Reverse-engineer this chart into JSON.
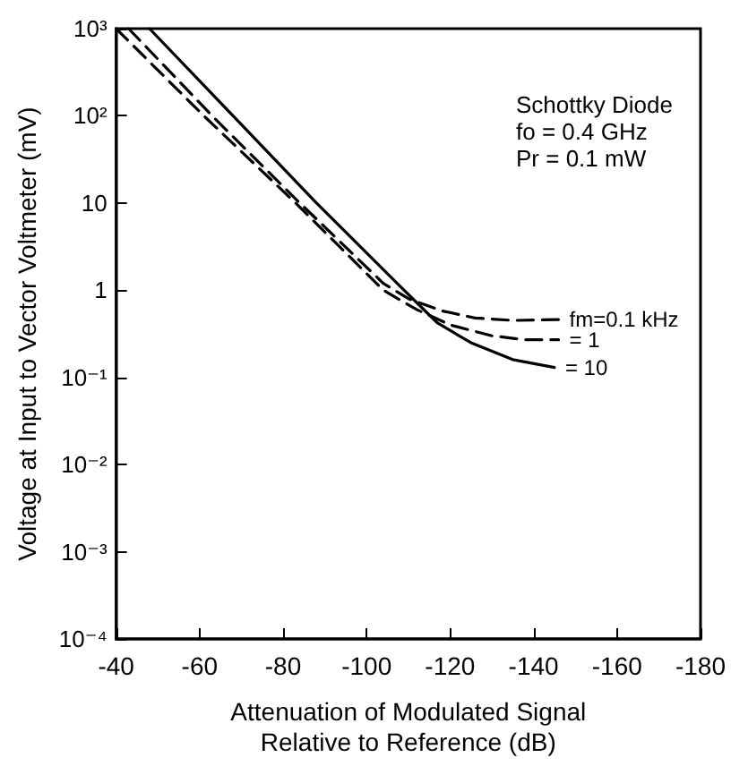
{
  "chart_data": {
    "type": "line",
    "xlabel": "Attenuation of Modulated Signal\nRelative to Reference (dB)",
    "ylabel": "Voltage at Input to Vector Voltmeter (mV)",
    "log": "y",
    "xlim": [
      -40,
      -180
    ],
    "xticks": [
      -40,
      -60,
      -80,
      -100,
      -120,
      -140,
      -160,
      -180
    ],
    "ylim": [
      0.0001,
      1000
    ],
    "yticks": [
      {
        "value": 1000,
        "label": "10³"
      },
      {
        "value": 100,
        "label": "10²"
      },
      {
        "value": 10,
        "label": "10"
      },
      {
        "value": 1,
        "label": "1"
      },
      {
        "value": 0.1,
        "label": "10⁻¹"
      },
      {
        "value": 0.01,
        "label": "10⁻²"
      },
      {
        "value": 0.001,
        "label": "10⁻³"
      },
      {
        "value": 0.0001,
        "label": "10⁻⁴"
      }
    ],
    "grid": false,
    "legend": false,
    "marker": "none",
    "annotations": [
      "Schottky Diode",
      "fo = 0.4 GHz",
      "Pr = 0.1 mW"
    ],
    "series": [
      {
        "name": "fm=0.1 kHz",
        "color": "#000000",
        "line_style": "dashed",
        "x": [
          -43,
          -63,
          -84,
          -104,
          -110,
          -118,
          -126,
          -135,
          -146
        ],
        "values": [
          1000,
          100,
          10,
          1.2,
          0.8,
          0.58,
          0.48,
          0.45,
          0.46
        ]
      },
      {
        "name": "= 1",
        "color": "#000000",
        "line_style": "dashed",
        "x": [
          -40,
          -61,
          -83,
          -104,
          -112,
          -120,
          -130,
          -138,
          -146
        ],
        "values": [
          1000,
          100,
          10,
          1,
          0.6,
          0.4,
          0.3,
          0.27,
          0.27
        ]
      },
      {
        "name": "= 10",
        "color": "#000000",
        "line_style": "solid",
        "x": [
          -48,
          -68,
          -88,
          -109,
          -117,
          -125,
          -135,
          -145
        ],
        "values": [
          1000,
          100,
          10,
          1,
          0.42,
          0.25,
          0.16,
          0.13
        ]
      }
    ]
  }
}
